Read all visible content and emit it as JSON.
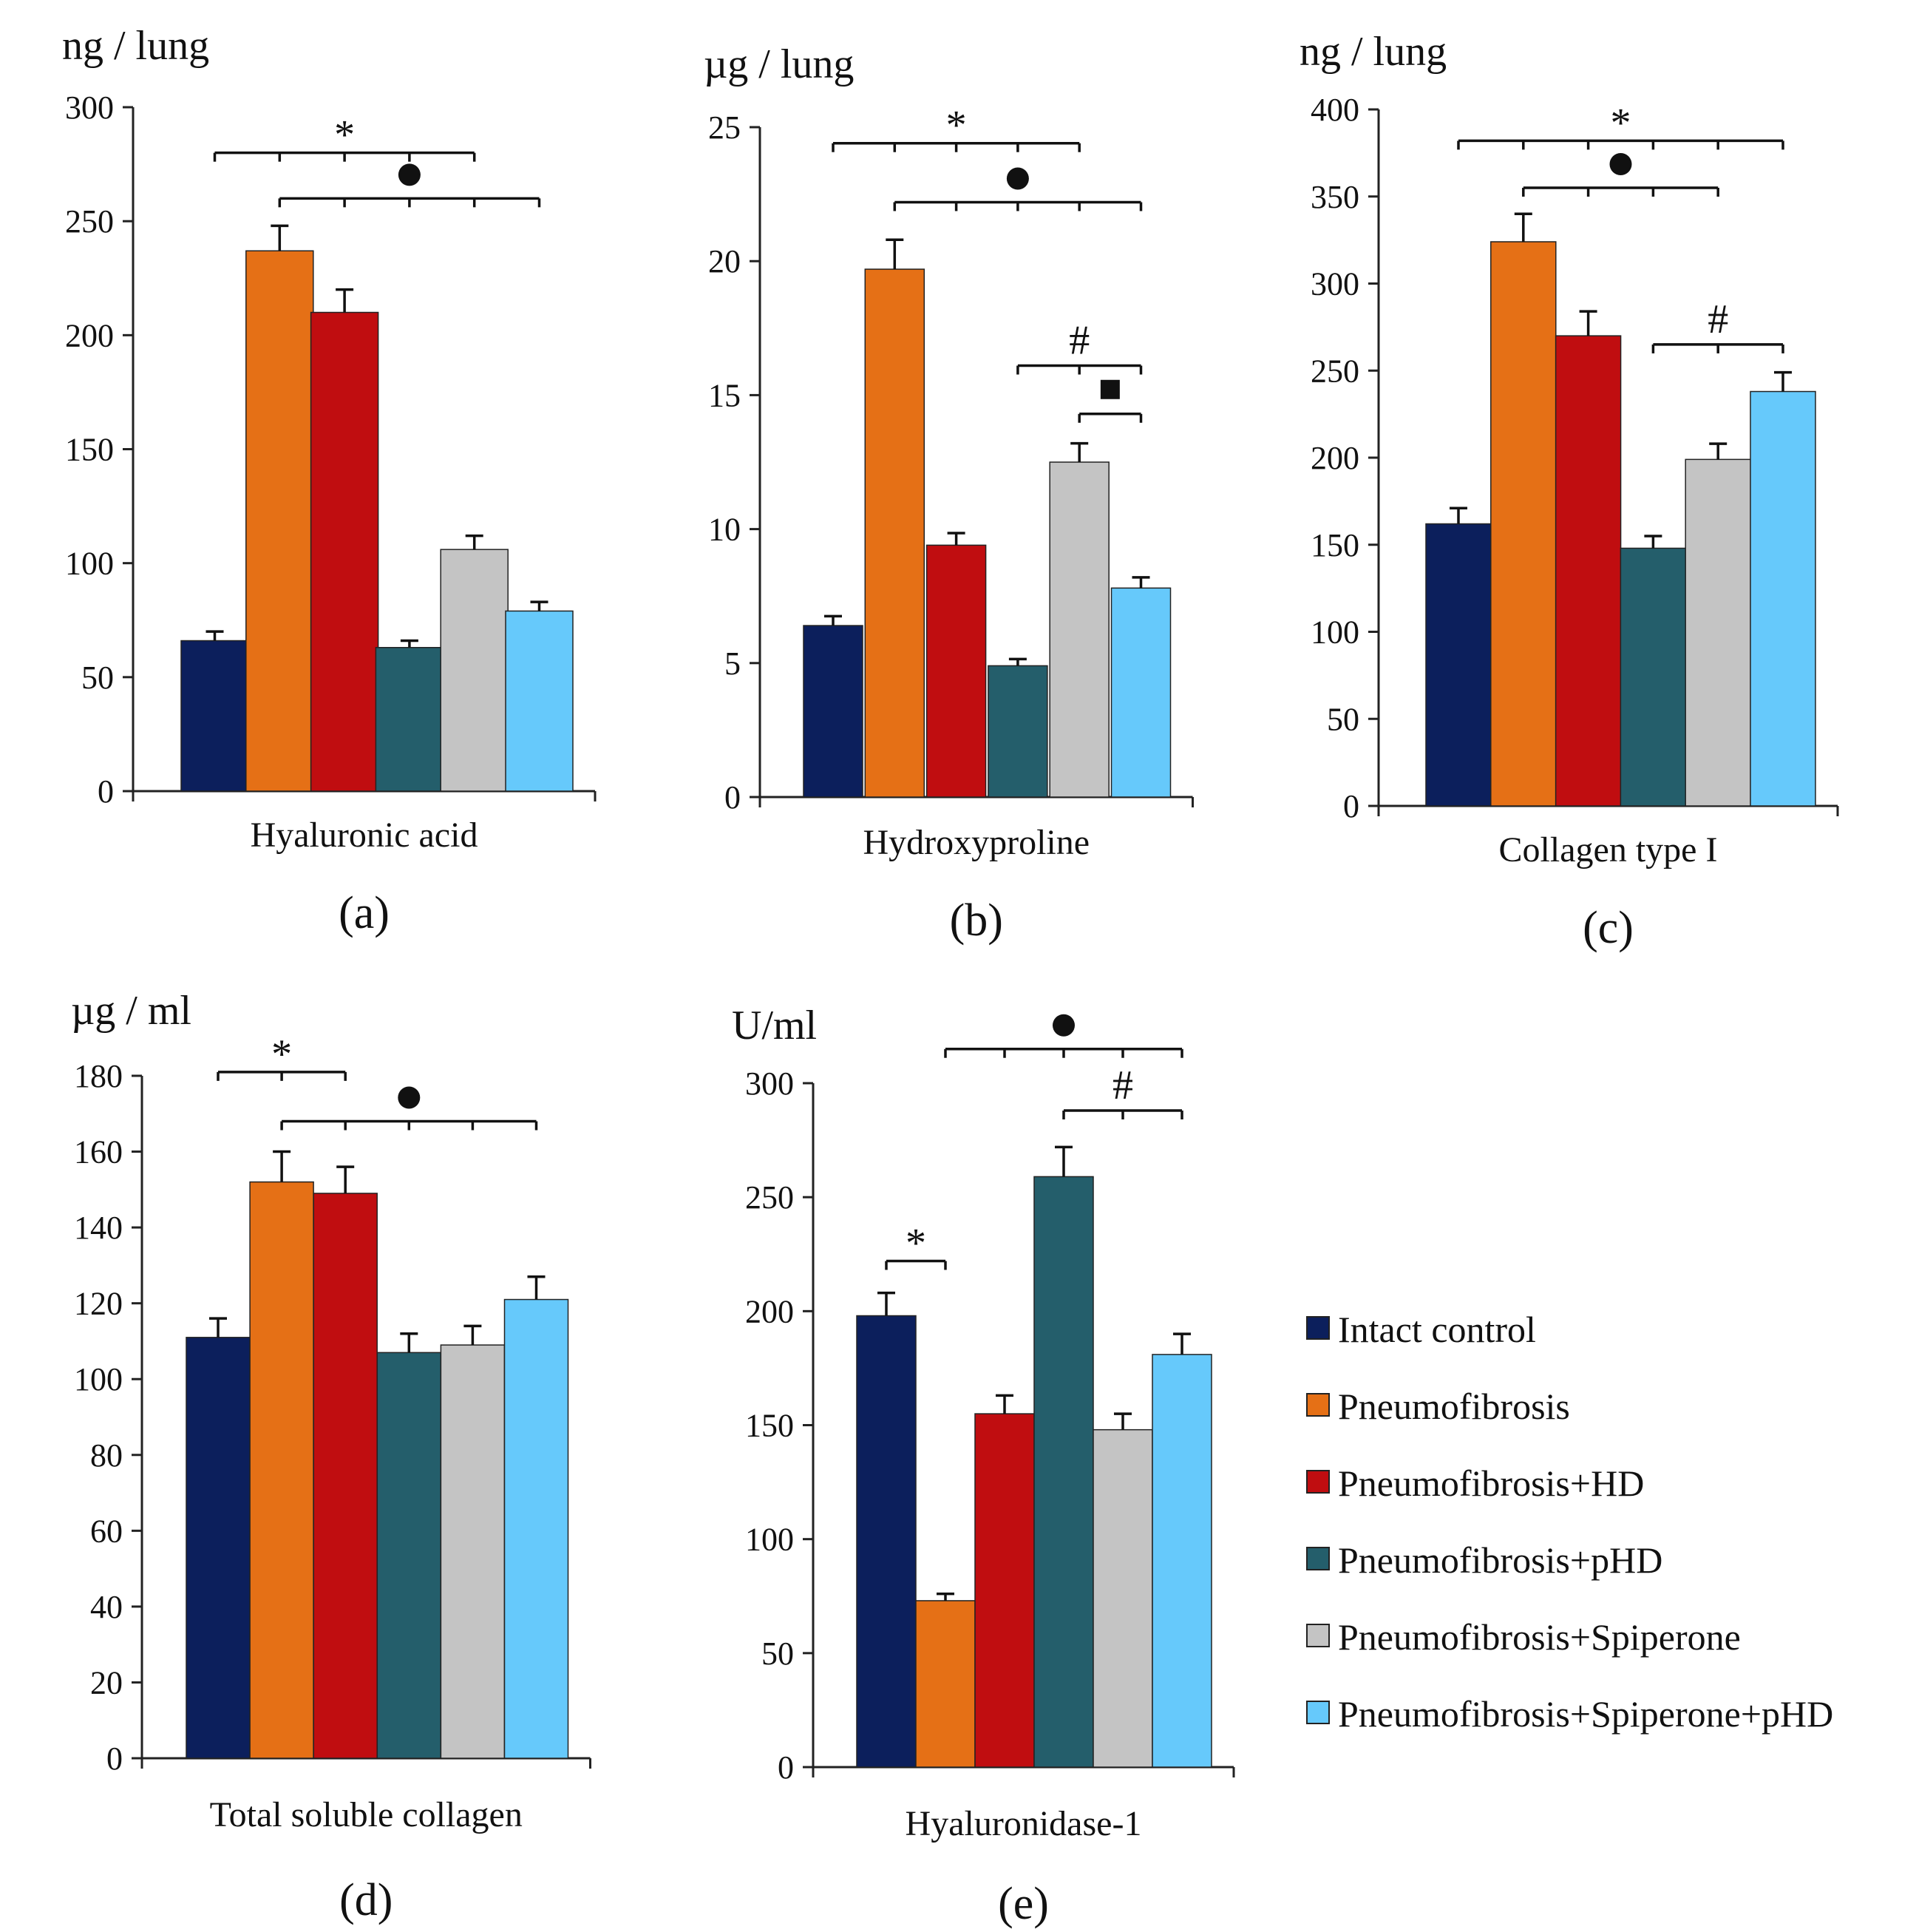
{
  "colors": {
    "Intact control": "#0c1f5c",
    "Pneumofibrosis": "#e57016",
    "Pneumofibrosis+HD": "#c00d10",
    "Pneumofibrosis+pHD": "#245e6b",
    "Pneumofibrosis+Spiperone": "#c4c4c4",
    "Pneumofibrosis+Spiperone+pHD": "#66c9fb"
  },
  "legend": {
    "entries": [
      "Intact control",
      "Pneumofibrosis",
      "Pneumofibrosis+HD",
      "Pneumofibrosis+pHD",
      "Pneumofibrosis+Spiperone",
      "Pneumofibrosis+Spiperone+pHD"
    ]
  },
  "chart_data": [
    {
      "type": "bar",
      "panel": "(a)",
      "unit_label": "ng / lung",
      "xlabel": "Hyaluronic acid",
      "ylim": [
        0,
        300
      ],
      "yticks": [
        0,
        50,
        100,
        150,
        200,
        250,
        300
      ],
      "categories": [
        "Intact control",
        "Pneumofibrosis",
        "Pneumofibrosis+HD",
        "Pneumofibrosis+pHD",
        "Pneumofibrosis+Spiperone",
        "Pneumofibrosis+Spiperone+pHD"
      ],
      "values": [
        66,
        237,
        210,
        63,
        106,
        79
      ],
      "errors": [
        4,
        11,
        10,
        3,
        6,
        4
      ],
      "significance": [
        {
          "symbol": "*",
          "from": 0,
          "to": 4,
          "at": 280
        },
        {
          "symbol": "●",
          "from": 1,
          "to": 5,
          "at": 260
        }
      ]
    },
    {
      "type": "bar",
      "panel": "(b)",
      "unit_label": "µg / lung",
      "xlabel": "Hydroxyproline",
      "ylim": [
        0,
        25
      ],
      "yticks": [
        0,
        5,
        10,
        15,
        20,
        25
      ],
      "categories": [
        "Intact control",
        "Pneumofibrosis",
        "Pneumofibrosis+HD",
        "Pneumofibrosis+pHD",
        "Pneumofibrosis+Spiperone",
        "Pneumofibrosis+Spiperone+pHD"
      ],
      "values": [
        6.4,
        19.7,
        9.4,
        4.9,
        12.5,
        7.8
      ],
      "errors": [
        0.35,
        1.1,
        0.45,
        0.25,
        0.7,
        0.4
      ],
      "significance": [
        {
          "symbol": "*",
          "from": 0,
          "to": 4,
          "at": 24.4
        },
        {
          "symbol": "●",
          "from": 1,
          "to": 5,
          "at": 22.2
        },
        {
          "symbol": "#",
          "from": 3,
          "to": 5,
          "at": 16.1
        },
        {
          "symbol": "■",
          "from": 4,
          "to": 5,
          "at": 14.3
        }
      ]
    },
    {
      "type": "bar",
      "panel": "(c)",
      "unit_label": "ng / lung",
      "xlabel": "Collagen type I",
      "ylim": [
        0,
        400
      ],
      "yticks": [
        0,
        50,
        100,
        150,
        200,
        250,
        300,
        350,
        400
      ],
      "categories": [
        "Intact control",
        "Pneumofibrosis",
        "Pneumofibrosis+HD",
        "Pneumofibrosis+pHD",
        "Pneumofibrosis+Spiperone",
        "Pneumofibrosis+Spiperone+pHD"
      ],
      "values": [
        162,
        324,
        270,
        148,
        199,
        238
      ],
      "errors": [
        9,
        16,
        14,
        7,
        9,
        11
      ],
      "significance": [
        {
          "symbol": "*",
          "from": 0,
          "to": 5,
          "at": 382
        },
        {
          "symbol": "●",
          "from": 1,
          "to": 4,
          "at": 355
        },
        {
          "symbol": "#",
          "from": 3,
          "to": 5,
          "at": 265
        }
      ]
    },
    {
      "type": "bar",
      "panel": "(d)",
      "unit_label": "µg / ml",
      "xlabel": "Total soluble collagen",
      "ylim": [
        0,
        180
      ],
      "yticks": [
        0,
        20,
        40,
        60,
        80,
        100,
        120,
        140,
        160,
        180
      ],
      "categories": [
        "Intact control",
        "Pneumofibrosis",
        "Pneumofibrosis+HD",
        "Pneumofibrosis+pHD",
        "Pneumofibrosis+Spiperone",
        "Pneumofibrosis+Spiperone+pHD"
      ],
      "values": [
        111,
        152,
        149,
        107,
        109,
        121
      ],
      "errors": [
        5,
        8,
        7,
        5,
        5,
        6
      ],
      "significance": [
        {
          "symbol": "*",
          "from": 0,
          "to": 2,
          "at": 181
        },
        {
          "symbol": "●",
          "from": 1,
          "to": 5,
          "at": 168
        }
      ]
    },
    {
      "type": "bar",
      "panel": "(e)",
      "unit_label": "U/ml",
      "xlabel": "Hyaluronidase-1",
      "ylim": [
        0,
        300
      ],
      "yticks": [
        0,
        50,
        100,
        150,
        200,
        250,
        300
      ],
      "categories": [
        "Intact control",
        "Pneumofibrosis",
        "Pneumofibrosis+HD",
        "Pneumofibrosis+pHD",
        "Pneumofibrosis+Spiperone",
        "Pneumofibrosis+Spiperone+pHD"
      ],
      "values": [
        198,
        73,
        155,
        259,
        148,
        181
      ],
      "errors": [
        10,
        3,
        8,
        13,
        7,
        9
      ],
      "significance": [
        {
          "symbol": "●",
          "from": 1,
          "to": 5,
          "at": 315
        },
        {
          "symbol": "#",
          "from": 3,
          "to": 5,
          "at": 288
        },
        {
          "symbol": "*",
          "from": 0,
          "to": 1,
          "at": 222
        }
      ]
    }
  ]
}
